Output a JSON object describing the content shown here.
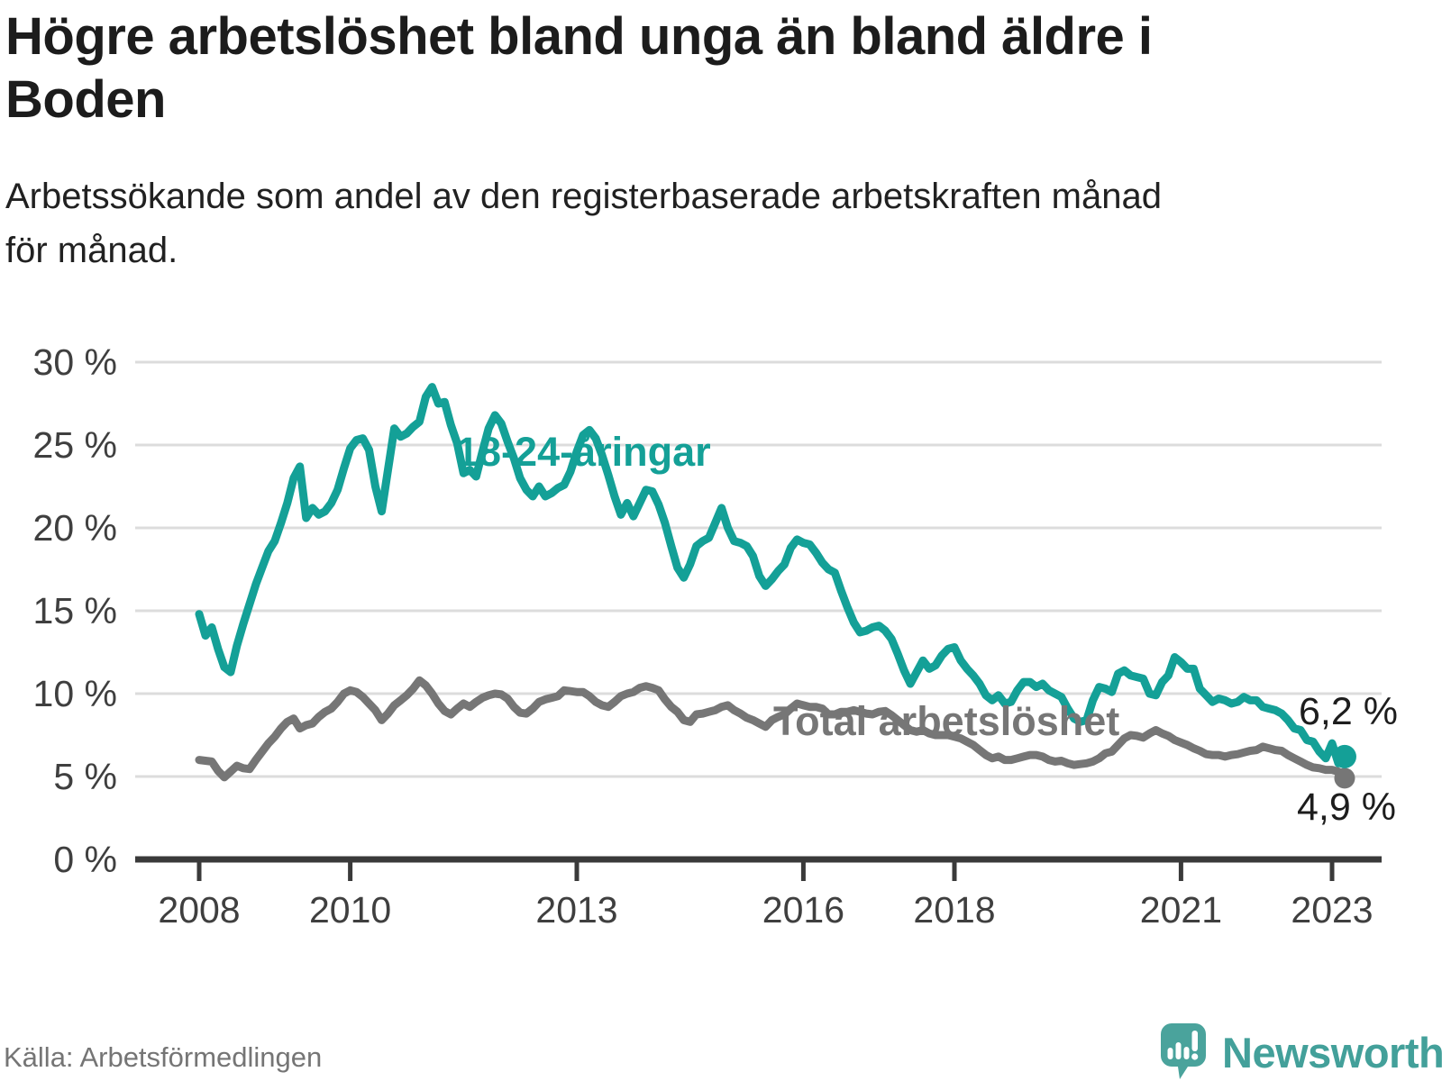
{
  "header": {
    "title": "Högre arbetslöshet bland unga än bland äldre i\nBoden",
    "subtitle": "Arbetssökande som andel av den registerbaserade arbetskraften månad\nför månad."
  },
  "footer": {
    "source": "Källa: Arbetsförmedlingen",
    "logo_text": "Newsworthy"
  },
  "colors": {
    "youth_line": "#14a097",
    "total_line": "#767676",
    "axis": "#3a3a3a",
    "gridline": "#dcdcdc",
    "tick_text": "#3f3f3f",
    "value_label_text": "#1d1d1d",
    "logo_teal": "#43a09a"
  },
  "chart_data": {
    "type": "line",
    "title": "Högre arbetslöshet bland unga än bland äldre i Boden",
    "subtitle": "Arbetssökande som andel av den registerbaserade arbetskraften månad för månad.",
    "unit": "%",
    "grid": true,
    "legend_position": "inline-labels-on-chart",
    "x_start_year": 2008,
    "x_start_month": 1,
    "x_end_year": 2023,
    "x_end_month": 3,
    "points_per_year": 12,
    "x_ticks": [
      2008,
      2010,
      2013,
      2016,
      2018,
      2021,
      2023
    ],
    "y_ticks": [
      0,
      5,
      10,
      15,
      20,
      25,
      30
    ],
    "y_tick_suffix": " %",
    "ylim": [
      0,
      30
    ],
    "series": [
      {
        "name": "Total arbetslöshet",
        "color": "#767676",
        "end_label": "4,9 %",
        "end_value": 4.9,
        "values": [
          6.0,
          5.95,
          5.9,
          5.35,
          4.95,
          5.3,
          5.65,
          5.5,
          5.45,
          6.0,
          6.5,
          7.0,
          7.4,
          7.9,
          8.3,
          8.5,
          7.9,
          8.1,
          8.2,
          8.6,
          8.9,
          9.1,
          9.5,
          10.0,
          10.2,
          10.1,
          9.8,
          9.4,
          9.0,
          8.4,
          8.8,
          9.3,
          9.6,
          9.9,
          10.3,
          10.8,
          10.5,
          10.0,
          9.4,
          8.95,
          8.75,
          9.1,
          9.4,
          9.2,
          9.5,
          9.75,
          9.9,
          10.0,
          9.95,
          9.7,
          9.2,
          8.85,
          8.8,
          9.1,
          9.5,
          9.65,
          9.75,
          9.85,
          10.2,
          10.15,
          10.1,
          10.1,
          9.85,
          9.5,
          9.3,
          9.2,
          9.5,
          9.85,
          10.0,
          10.1,
          10.35,
          10.45,
          10.35,
          10.2,
          9.65,
          9.2,
          8.9,
          8.4,
          8.3,
          8.75,
          8.8,
          8.9,
          9.0,
          9.2,
          9.3,
          9.0,
          8.8,
          8.55,
          8.4,
          8.2,
          8.0,
          8.4,
          8.6,
          8.75,
          9.1,
          9.4,
          9.3,
          9.2,
          9.2,
          9.1,
          8.75,
          8.75,
          8.9,
          8.9,
          9.0,
          8.9,
          8.8,
          8.75,
          8.9,
          8.95,
          8.7,
          8.4,
          8.1,
          7.8,
          7.7,
          7.8,
          7.6,
          7.5,
          7.5,
          7.5,
          7.4,
          7.3,
          7.1,
          6.9,
          6.6,
          6.3,
          6.1,
          6.2,
          6.0,
          6.0,
          6.1,
          6.2,
          6.3,
          6.3,
          6.2,
          6.0,
          5.9,
          5.95,
          5.8,
          5.7,
          5.75,
          5.8,
          5.9,
          6.1,
          6.4,
          6.5,
          6.9,
          7.3,
          7.5,
          7.45,
          7.35,
          7.6,
          7.8,
          7.6,
          7.45,
          7.2,
          7.05,
          6.9,
          6.7,
          6.55,
          6.35,
          6.3,
          6.3,
          6.2,
          6.3,
          6.35,
          6.45,
          6.55,
          6.6,
          6.8,
          6.7,
          6.6,
          6.55,
          6.3,
          6.1,
          5.9,
          5.7,
          5.55,
          5.5,
          5.4,
          5.4,
          5.3,
          4.9
        ]
      },
      {
        "name": "18-24-åringar",
        "color": "#14a097",
        "end_label": "6,2 %",
        "end_value": 6.2,
        "values": [
          14.8,
          13.5,
          14.0,
          12.7,
          11.6,
          11.3,
          12.9,
          14.2,
          15.4,
          16.6,
          17.6,
          18.6,
          19.2,
          20.3,
          21.5,
          23.0,
          23.7,
          20.6,
          21.2,
          20.8,
          21.0,
          21.5,
          22.3,
          23.6,
          24.8,
          25.3,
          25.4,
          24.7,
          22.5,
          21.0,
          23.5,
          26.0,
          25.5,
          25.7,
          26.1,
          26.4,
          27.9,
          28.5,
          27.5,
          27.6,
          26.2,
          25.1,
          23.3,
          23.5,
          23.1,
          24.6,
          26.0,
          26.8,
          26.3,
          25.2,
          24.2,
          23.0,
          22.3,
          21.9,
          22.5,
          21.9,
          22.1,
          22.4,
          22.6,
          23.4,
          24.6,
          25.6,
          25.9,
          25.4,
          24.4,
          23.2,
          21.9,
          20.8,
          21.5,
          20.7,
          21.5,
          22.3,
          22.2,
          21.4,
          20.3,
          18.9,
          17.6,
          17.0,
          17.8,
          18.9,
          19.2,
          19.4,
          20.3,
          21.2,
          20.0,
          19.2,
          19.1,
          18.9,
          18.3,
          17.1,
          16.5,
          16.9,
          17.4,
          17.8,
          18.8,
          19.3,
          19.1,
          19.0,
          18.5,
          17.9,
          17.5,
          17.3,
          16.2,
          15.2,
          14.3,
          13.7,
          13.8,
          14.0,
          14.1,
          13.8,
          13.3,
          12.4,
          11.4,
          10.6,
          11.3,
          12.0,
          11.5,
          11.7,
          12.3,
          12.7,
          12.8,
          12.0,
          11.5,
          11.1,
          10.6,
          9.9,
          9.6,
          9.9,
          9.4,
          9.5,
          10.2,
          10.7,
          10.7,
          10.4,
          10.6,
          10.2,
          10.0,
          9.8,
          9.1,
          8.5,
          8.3,
          8.4,
          9.6,
          10.4,
          10.3,
          10.1,
          11.2,
          11.4,
          11.1,
          11.0,
          10.9,
          10.0,
          9.9,
          10.7,
          11.1,
          12.2,
          11.9,
          11.5,
          11.5,
          10.3,
          9.9,
          9.5,
          9.7,
          9.6,
          9.4,
          9.5,
          9.8,
          9.6,
          9.6,
          9.2,
          9.1,
          9.0,
          8.8,
          8.4,
          7.9,
          7.8,
          7.2,
          7.1,
          6.5,
          6.1,
          7.0,
          5.8,
          6.2
        ]
      }
    ]
  }
}
